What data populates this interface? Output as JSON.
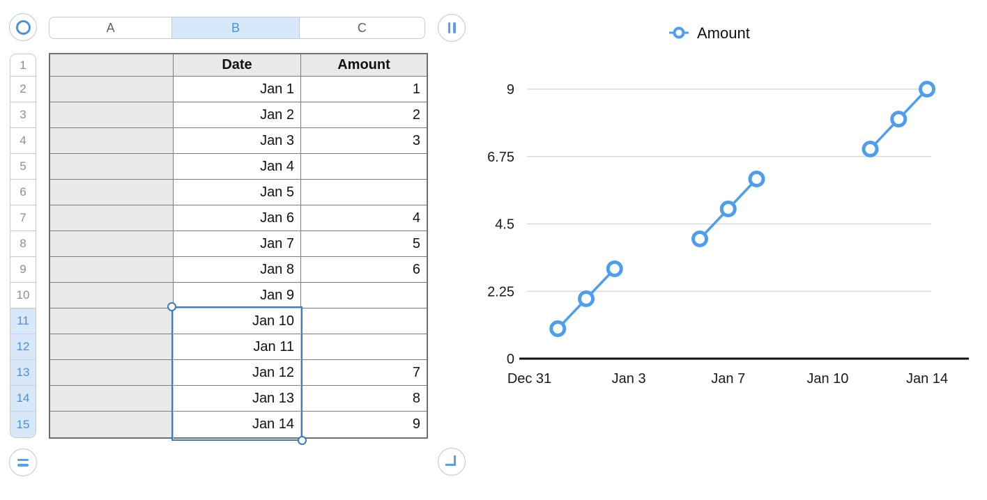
{
  "colors": {
    "accent": "#4A90E2",
    "chart_series": "#4D9EEC",
    "selection_border": "#3E7BBE",
    "selected_fill": "#D8E8F8",
    "column_selected_fill": "#D6E8FA",
    "header_cell_fill": "#E9E9E9",
    "grid_line": "#d4d4d4",
    "axis_line": "#111111"
  },
  "icons": {
    "table_select": "circle-outline",
    "add_columns": "double-vertical-bars",
    "add_rows": "double-horizontal-bars",
    "table_resize": "corner-bracket",
    "legend_marker": "open-circle-with-line"
  },
  "column_bar": {
    "columns": [
      {
        "label": "A",
        "selected": false
      },
      {
        "label": "B",
        "selected": true
      },
      {
        "label": "C",
        "selected": false
      }
    ]
  },
  "row_numbers": [
    {
      "label": "1",
      "selected": false
    },
    {
      "label": "2",
      "selected": false
    },
    {
      "label": "3",
      "selected": false
    },
    {
      "label": "4",
      "selected": false
    },
    {
      "label": "5",
      "selected": false
    },
    {
      "label": "6",
      "selected": false
    },
    {
      "label": "7",
      "selected": false
    },
    {
      "label": "8",
      "selected": false
    },
    {
      "label": "9",
      "selected": false
    },
    {
      "label": "10",
      "selected": false
    },
    {
      "label": "11",
      "selected": true
    },
    {
      "label": "12",
      "selected": true
    },
    {
      "label": "13",
      "selected": true
    },
    {
      "label": "14",
      "selected": true
    },
    {
      "label": "15",
      "selected": true
    }
  ],
  "table": {
    "headers": {
      "a": "",
      "date": "Date",
      "amount": "Amount"
    },
    "rows": [
      {
        "row": "2",
        "date": "Jan 1",
        "amount": "1"
      },
      {
        "row": "3",
        "date": "Jan 2",
        "amount": "2"
      },
      {
        "row": "4",
        "date": "Jan 3",
        "amount": "3"
      },
      {
        "row": "5",
        "date": "Jan 4",
        "amount": ""
      },
      {
        "row": "6",
        "date": "Jan 5",
        "amount": ""
      },
      {
        "row": "7",
        "date": "Jan 6",
        "amount": "4"
      },
      {
        "row": "8",
        "date": "Jan 7",
        "amount": "5"
      },
      {
        "row": "9",
        "date": "Jan 8",
        "amount": "6"
      },
      {
        "row": "10",
        "date": "Jan 9",
        "amount": ""
      },
      {
        "row": "11",
        "date": "Jan 10",
        "amount": ""
      },
      {
        "row": "12",
        "date": "Jan 11",
        "amount": ""
      },
      {
        "row": "13",
        "date": "Jan 12",
        "amount": "7"
      },
      {
        "row": "14",
        "date": "Jan 13",
        "amount": "8"
      },
      {
        "row": "15",
        "date": "Jan 14",
        "amount": "9"
      }
    ]
  },
  "selection": {
    "column": "B",
    "start_row": 11,
    "end_row": 15
  },
  "chart_data": {
    "type": "line",
    "title": "",
    "legend": {
      "position": "top",
      "entries": [
        "Amount"
      ]
    },
    "marker": "open-circle",
    "color": "#4D9EEC",
    "grid": "horizontal-only",
    "ylim": [
      0,
      9
    ],
    "y_ticks": [
      0,
      2.25,
      4.5,
      6.75,
      9
    ],
    "y_tick_labels": [
      "0",
      "2.25",
      "4.5",
      "6.75",
      "9"
    ],
    "x_tick_labels": [
      "Dec 31",
      "Jan 3",
      "Jan 7",
      "Jan 10",
      "Jan 14"
    ],
    "x_range_days": [
      0,
      14
    ],
    "series": [
      {
        "name": "Amount",
        "points": [
          {
            "label": "Jan 1",
            "day": 1,
            "y": 1
          },
          {
            "label": "Jan 2",
            "day": 2,
            "y": 2
          },
          {
            "label": "Jan 3",
            "day": 3,
            "y": 3
          },
          {
            "label": "Jan 6",
            "day": 6,
            "y": 4
          },
          {
            "label": "Jan 7",
            "day": 7,
            "y": 5
          },
          {
            "label": "Jan 8",
            "day": 8,
            "y": 6
          },
          {
            "label": "Jan 12",
            "day": 12,
            "y": 7
          },
          {
            "label": "Jan 13",
            "day": 13,
            "y": 8
          },
          {
            "label": "Jan 14",
            "day": 14,
            "y": 9
          }
        ]
      }
    ]
  }
}
